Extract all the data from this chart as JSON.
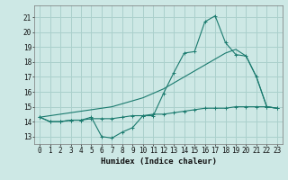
{
  "title": "",
  "xlabel": "Humidex (Indice chaleur)",
  "bg_color": "#cde8e5",
  "grid_color": "#aad0cc",
  "line_color": "#1a7a6e",
  "xlim": [
    -0.5,
    23.5
  ],
  "ylim": [
    12.5,
    21.8
  ],
  "yticks": [
    13,
    14,
    15,
    16,
    17,
    18,
    19,
    20,
    21
  ],
  "xticks": [
    0,
    1,
    2,
    3,
    4,
    5,
    6,
    7,
    8,
    9,
    10,
    11,
    12,
    13,
    14,
    15,
    16,
    17,
    18,
    19,
    20,
    21,
    22,
    23
  ],
  "line1_x": [
    0,
    1,
    2,
    3,
    4,
    5,
    6,
    7,
    8,
    9,
    10,
    11,
    12,
    13,
    14,
    15,
    16,
    17,
    18,
    19,
    20,
    21,
    22,
    23
  ],
  "line1_y": [
    14.3,
    14.0,
    14.0,
    14.1,
    14.1,
    14.2,
    14.2,
    14.2,
    14.3,
    14.4,
    14.4,
    14.5,
    14.5,
    14.6,
    14.7,
    14.8,
    14.9,
    14.9,
    14.9,
    15.0,
    15.0,
    15.0,
    15.0,
    14.9
  ],
  "line2_x": [
    0,
    1,
    2,
    3,
    4,
    5,
    6,
    7,
    8,
    9,
    10,
    11,
    12,
    13,
    14,
    15,
    16,
    17,
    18,
    19,
    20,
    21,
    22,
    23
  ],
  "line2_y": [
    14.3,
    14.0,
    14.0,
    14.1,
    14.1,
    14.3,
    13.0,
    12.9,
    13.3,
    13.6,
    14.4,
    14.4,
    15.9,
    17.3,
    18.6,
    18.7,
    20.7,
    21.1,
    19.3,
    18.5,
    18.4,
    17.0,
    15.0,
    14.9
  ],
  "line3_x": [
    0,
    1,
    2,
    3,
    4,
    5,
    6,
    7,
    8,
    9,
    10,
    11,
    12,
    13,
    14,
    15,
    16,
    17,
    18,
    19,
    20,
    21,
    22,
    23
  ],
  "line3_y": [
    14.3,
    14.4,
    14.5,
    14.6,
    14.7,
    14.8,
    14.9,
    15.0,
    15.2,
    15.4,
    15.6,
    15.9,
    16.2,
    16.6,
    17.0,
    17.4,
    17.8,
    18.2,
    18.6,
    18.85,
    18.4,
    17.0,
    15.0,
    14.9
  ]
}
